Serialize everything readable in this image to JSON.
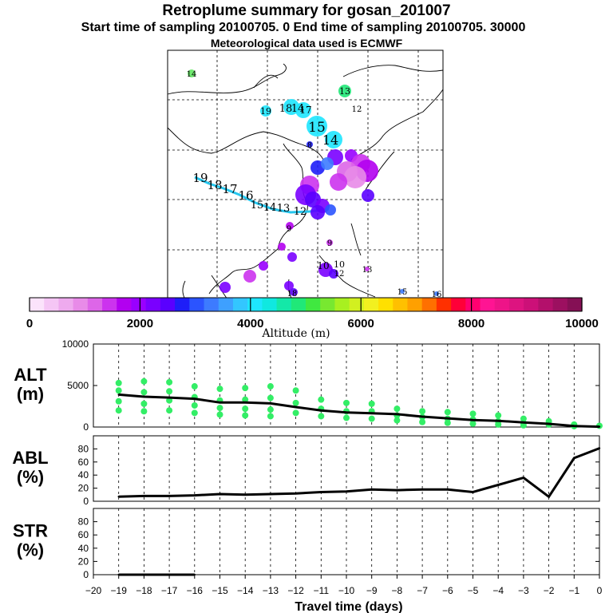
{
  "header": {
    "title": "Retroplume summary for gosan_201007",
    "sampling_line": "Start time of sampling 20100705.    0    End time of sampling 20100705. 30000",
    "met_line": "Meteorological data used is ECMWF"
  },
  "map": {
    "point_labels": [
      "14",
      "13",
      "12",
      "19",
      "18",
      "14",
      "17",
      "15",
      "14",
      "8",
      "19",
      "18",
      "17",
      "16",
      "15",
      "14",
      "13",
      "12",
      "10",
      "9",
      "9",
      "10",
      "13",
      "12",
      "18",
      "15",
      "16"
    ]
  },
  "colorbar": {
    "ticks": [
      "0",
      "2000",
      "4000",
      "6000",
      "8000",
      "10000"
    ],
    "label": "Altitude (m)",
    "colors": [
      "#fbe3fb",
      "#f5c6f5",
      "#eeaaee",
      "#e88be8",
      "#dd66e8",
      "#cc33ee",
      "#b200f0",
      "#9900ff",
      "#7a00ff",
      "#5a00ff",
      "#1e1ef8",
      "#2b54ff",
      "#3d7bff",
      "#3ea0ff",
      "#33c6ff",
      "#1ee6ff",
      "#10e8e0",
      "#14e8a8",
      "#20e878",
      "#40e840",
      "#78e830",
      "#a8f020",
      "#d2f020",
      "#f2f020",
      "#ffe000",
      "#ffc000",
      "#ffa000",
      "#ff7000",
      "#ff3000",
      "#ff0038",
      "#ff0070",
      "#ff1493",
      "#ee1488",
      "#dd1480",
      "#cc1078",
      "#b3106b",
      "#9c1060",
      "#851055"
    ]
  },
  "chart_data": [
    {
      "type": "line",
      "name": "ALT",
      "ylabel": "ALT\n(m)",
      "ylim": [
        0,
        10000
      ],
      "yticks": [
        0,
        5000,
        10000
      ],
      "x": [
        -19,
        -18,
        -17,
        -16,
        -15,
        -14,
        -13,
        -12,
        -11,
        -10,
        -9,
        -8,
        -7,
        -6,
        -5,
        -4,
        -3,
        -2,
        -1,
        0
      ],
      "series": [
        {
          "name": "mean altitude",
          "values": [
            3900,
            3650,
            3550,
            3400,
            2950,
            2950,
            2850,
            2400,
            2000,
            1750,
            1650,
            1550,
            1250,
            1050,
            850,
            750,
            550,
            380,
            120,
            40
          ]
        }
      ],
      "scatter_points": [
        {
          "x": -19,
          "y": 5300
        },
        {
          "x": -19,
          "y": 4400
        },
        {
          "x": -19,
          "y": 3100
        },
        {
          "x": -19,
          "y": 2000
        },
        {
          "x": -18,
          "y": 5500
        },
        {
          "x": -18,
          "y": 4200
        },
        {
          "x": -18,
          "y": 2800
        },
        {
          "x": -18,
          "y": 1900
        },
        {
          "x": -17,
          "y": 5400
        },
        {
          "x": -17,
          "y": 4300
        },
        {
          "x": -17,
          "y": 3200
        },
        {
          "x": -17,
          "y": 2000
        },
        {
          "x": -16,
          "y": 4900
        },
        {
          "x": -16,
          "y": 3600
        },
        {
          "x": -16,
          "y": 2600
        },
        {
          "x": -16,
          "y": 1700
        },
        {
          "x": -15,
          "y": 4600
        },
        {
          "x": -15,
          "y": 3200
        },
        {
          "x": -15,
          "y": 2300
        },
        {
          "x": -15,
          "y": 1500
        },
        {
          "x": -14,
          "y": 4700
        },
        {
          "x": -14,
          "y": 3300
        },
        {
          "x": -14,
          "y": 2200
        },
        {
          "x": -14,
          "y": 1400
        },
        {
          "x": -13,
          "y": 4900
        },
        {
          "x": -13,
          "y": 3500
        },
        {
          "x": -13,
          "y": 2100
        },
        {
          "x": -13,
          "y": 1300
        },
        {
          "x": -12,
          "y": 4400
        },
        {
          "x": -12,
          "y": 2900
        },
        {
          "x": -12,
          "y": 1700
        },
        {
          "x": -11,
          "y": 3300
        },
        {
          "x": -11,
          "y": 2200
        },
        {
          "x": -11,
          "y": 1300
        },
        {
          "x": -10,
          "y": 2900
        },
        {
          "x": -10,
          "y": 1900
        },
        {
          "x": -10,
          "y": 1100
        },
        {
          "x": -9,
          "y": 2800
        },
        {
          "x": -9,
          "y": 1900
        },
        {
          "x": -9,
          "y": 1000
        },
        {
          "x": -8,
          "y": 2200
        },
        {
          "x": -8,
          "y": 1400
        },
        {
          "x": -8,
          "y": 800
        },
        {
          "x": -7,
          "y": 1900
        },
        {
          "x": -7,
          "y": 1200
        },
        {
          "x": -7,
          "y": 600
        },
        {
          "x": -6,
          "y": 1800
        },
        {
          "x": -6,
          "y": 1000
        },
        {
          "x": -6,
          "y": 500
        },
        {
          "x": -5,
          "y": 1600
        },
        {
          "x": -5,
          "y": 900
        },
        {
          "x": -5,
          "y": 400
        },
        {
          "x": -4,
          "y": 1400
        },
        {
          "x": -4,
          "y": 700
        },
        {
          "x": -4,
          "y": 300
        },
        {
          "x": -3,
          "y": 1000
        },
        {
          "x": -3,
          "y": 500
        },
        {
          "x": -3,
          "y": 200
        },
        {
          "x": -2,
          "y": 700
        },
        {
          "x": -2,
          "y": 300
        },
        {
          "x": -1,
          "y": 300
        },
        {
          "x": -1,
          "y": 100
        },
        {
          "x": 0,
          "y": 150
        }
      ]
    },
    {
      "type": "line",
      "name": "ABL",
      "ylabel": "ABL\n(%)",
      "ylim": [
        0,
        100
      ],
      "yticks": [
        0,
        20,
        40,
        60,
        80
      ],
      "x": [
        -19,
        -18,
        -17,
        -16,
        -15,
        -14,
        -13,
        -12,
        -11,
        -10,
        -9,
        -8,
        -7,
        -6,
        -5,
        -4,
        -3,
        -2,
        -1,
        0
      ],
      "series": [
        {
          "name": "ABL fraction",
          "values": [
            7,
            8,
            8,
            9,
            11,
            10,
            11,
            12,
            14,
            15,
            18,
            17,
            18,
            18,
            14,
            25,
            36,
            7,
            66,
            81
          ]
        }
      ]
    },
    {
      "type": "line",
      "name": "STR",
      "ylabel": "STR\n(%)",
      "ylim": [
        0,
        100
      ],
      "yticks": [
        0,
        20,
        40,
        60,
        80
      ],
      "x": [
        -19,
        -18,
        -17,
        -16
      ],
      "series": [
        {
          "name": "stratospheric fraction",
          "values": [
            0,
            0,
            0,
            0
          ]
        }
      ]
    }
  ],
  "xaxis": {
    "ticks": [
      -20,
      -19,
      -18,
      -17,
      -16,
      -15,
      -14,
      -13,
      -12,
      -11,
      -10,
      -9,
      -8,
      -7,
      -6,
      -5,
      -4,
      -3,
      -2,
      -1,
      0
    ],
    "label": "Travel time (days)"
  }
}
